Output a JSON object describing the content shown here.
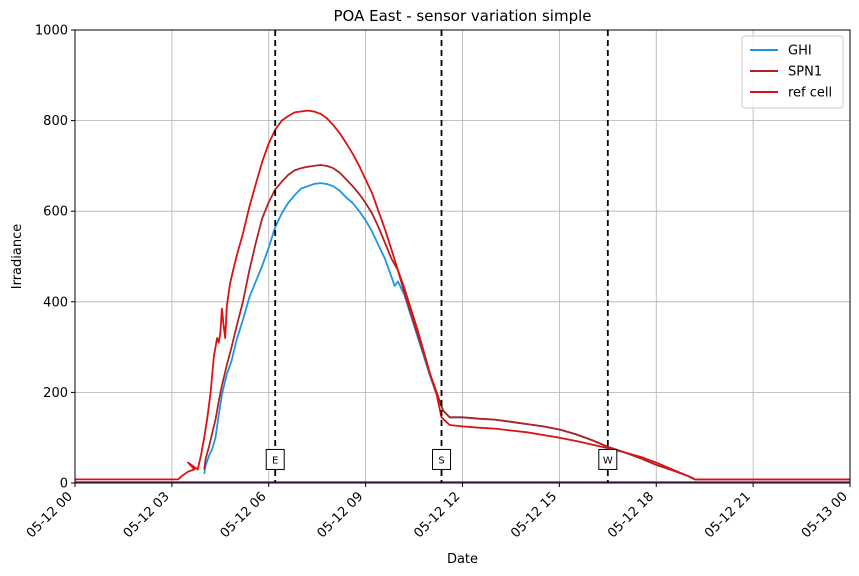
{
  "chart_data": {
    "type": "line",
    "title": "POA East - sensor variation simple",
    "xlabel": "Date",
    "ylabel": "Irradiance",
    "xlim_hours": [
      0,
      24
    ],
    "ylim": [
      0,
      1000
    ],
    "grid": true,
    "legend_position": "top-right",
    "x_ticks": [
      {
        "hour": 0,
        "label": "05-12 00"
      },
      {
        "hour": 3,
        "label": "05-12 03"
      },
      {
        "hour": 6,
        "label": "05-12 06"
      },
      {
        "hour": 9,
        "label": "05-12 09"
      },
      {
        "hour": 12,
        "label": "05-12 12"
      },
      {
        "hour": 15,
        "label": "05-12 15"
      },
      {
        "hour": 18,
        "label": "05-12 18"
      },
      {
        "hour": 21,
        "label": "05-12 21"
      },
      {
        "hour": 24,
        "label": "05-13 00"
      }
    ],
    "y_ticks": [
      0,
      200,
      400,
      600,
      800,
      1000
    ],
    "vertical_markers": [
      {
        "hour": 6.2,
        "label": "E"
      },
      {
        "hour": 11.35,
        "label": "S"
      },
      {
        "hour": 16.5,
        "label": "W"
      }
    ],
    "series": [
      {
        "name": "GHI",
        "color": "#1f95e6",
        "points": [
          [
            4.0,
            20
          ],
          [
            4.05,
            40
          ],
          [
            4.15,
            60
          ],
          [
            4.25,
            75
          ],
          [
            4.35,
            100
          ],
          [
            4.45,
            150
          ],
          [
            4.55,
            195
          ],
          [
            4.7,
            240
          ],
          [
            4.85,
            270
          ],
          [
            5.0,
            315
          ],
          [
            5.2,
            360
          ],
          [
            5.4,
            410
          ],
          [
            5.6,
            445
          ],
          [
            5.8,
            480
          ],
          [
            6.0,
            520
          ],
          [
            6.2,
            565
          ],
          [
            6.4,
            595
          ],
          [
            6.6,
            618
          ],
          [
            6.8,
            635
          ],
          [
            7.0,
            650
          ],
          [
            7.2,
            655
          ],
          [
            7.4,
            660
          ],
          [
            7.6,
            662
          ],
          [
            7.8,
            660
          ],
          [
            8.0,
            655
          ],
          [
            8.2,
            645
          ],
          [
            8.4,
            630
          ],
          [
            8.6,
            618
          ],
          [
            8.8,
            600
          ],
          [
            9.0,
            580
          ],
          [
            9.2,
            555
          ],
          [
            9.4,
            525
          ],
          [
            9.6,
            495
          ],
          [
            9.8,
            455
          ],
          [
            9.9,
            435
          ],
          [
            10.0,
            445
          ],
          [
            10.2,
            415
          ],
          [
            10.4,
            370
          ],
          [
            10.6,
            325
          ],
          [
            10.8,
            280
          ],
          [
            11.0,
            235
          ],
          [
            11.2,
            195
          ],
          [
            11.4,
            160
          ],
          [
            11.6,
            145
          ],
          [
            12.0,
            145
          ],
          [
            12.5,
            142
          ],
          [
            13.0,
            140
          ],
          [
            13.5,
            135
          ],
          [
            14.0,
            130
          ],
          [
            14.5,
            125
          ],
          [
            15.0,
            118
          ],
          [
            15.5,
            108
          ],
          [
            16.0,
            95
          ],
          [
            16.5,
            80
          ],
          [
            17.0,
            68
          ],
          [
            17.5,
            55
          ],
          [
            18.0,
            40
          ],
          [
            18.5,
            28
          ],
          [
            19.0,
            15
          ],
          [
            19.2,
            8
          ],
          [
            24.0,
            8
          ]
        ]
      },
      {
        "name": "SPN1",
        "color": "#b22222",
        "points": [
          [
            4.0,
            30
          ],
          [
            4.05,
            55
          ],
          [
            4.15,
            80
          ],
          [
            4.25,
            110
          ],
          [
            4.35,
            140
          ],
          [
            4.45,
            180
          ],
          [
            4.55,
            215
          ],
          [
            4.7,
            260
          ],
          [
            4.85,
            300
          ],
          [
            5.0,
            345
          ],
          [
            5.2,
            400
          ],
          [
            5.4,
            470
          ],
          [
            5.6,
            530
          ],
          [
            5.8,
            585
          ],
          [
            6.0,
            620
          ],
          [
            6.2,
            648
          ],
          [
            6.4,
            665
          ],
          [
            6.6,
            680
          ],
          [
            6.8,
            690
          ],
          [
            7.0,
            695
          ],
          [
            7.2,
            698
          ],
          [
            7.4,
            700
          ],
          [
            7.6,
            702
          ],
          [
            7.8,
            700
          ],
          [
            8.0,
            695
          ],
          [
            8.2,
            685
          ],
          [
            8.4,
            670
          ],
          [
            8.6,
            655
          ],
          [
            8.8,
            638
          ],
          [
            9.0,
            618
          ],
          [
            9.2,
            595
          ],
          [
            9.4,
            565
          ],
          [
            9.6,
            530
          ],
          [
            9.8,
            495
          ],
          [
            10.0,
            470
          ],
          [
            10.2,
            420
          ],
          [
            10.4,
            375
          ],
          [
            10.6,
            330
          ],
          [
            10.8,
            285
          ],
          [
            11.0,
            240
          ],
          [
            11.2,
            200
          ],
          [
            11.4,
            160
          ],
          [
            11.6,
            145
          ],
          [
            12.0,
            145
          ],
          [
            12.5,
            142
          ],
          [
            13.0,
            140
          ],
          [
            13.5,
            135
          ],
          [
            14.0,
            130
          ],
          [
            14.5,
            125
          ],
          [
            15.0,
            118
          ],
          [
            15.5,
            108
          ],
          [
            16.0,
            95
          ],
          [
            16.5,
            80
          ],
          [
            17.0,
            68
          ],
          [
            17.5,
            55
          ],
          [
            18.0,
            40
          ],
          [
            18.5,
            28
          ],
          [
            19.0,
            15
          ],
          [
            19.2,
            8
          ],
          [
            24.0,
            8
          ]
        ]
      },
      {
        "name": "ref cell",
        "color": "#dd1111",
        "points": [
          [
            0.0,
            8
          ],
          [
            3.2,
            8
          ],
          [
            3.3,
            15
          ],
          [
            3.5,
            25
          ],
          [
            3.7,
            30
          ],
          [
            3.5,
            45
          ],
          [
            3.8,
            30
          ],
          [
            3.9,
            60
          ],
          [
            4.0,
            100
          ],
          [
            4.1,
            145
          ],
          [
            4.2,
            200
          ],
          [
            4.3,
            280
          ],
          [
            4.4,
            320
          ],
          [
            4.45,
            310
          ],
          [
            4.5,
            330
          ],
          [
            4.55,
            385
          ],
          [
            4.6,
            350
          ],
          [
            4.65,
            320
          ],
          [
            4.7,
            390
          ],
          [
            4.8,
            440
          ],
          [
            4.9,
            470
          ],
          [
            5.0,
            500
          ],
          [
            5.2,
            550
          ],
          [
            5.4,
            610
          ],
          [
            5.6,
            660
          ],
          [
            5.8,
            710
          ],
          [
            6.0,
            750
          ],
          [
            6.2,
            780
          ],
          [
            6.4,
            800
          ],
          [
            6.6,
            810
          ],
          [
            6.8,
            818
          ],
          [
            7.0,
            820
          ],
          [
            7.2,
            822
          ],
          [
            7.4,
            820
          ],
          [
            7.6,
            815
          ],
          [
            7.8,
            805
          ],
          [
            8.0,
            790
          ],
          [
            8.2,
            772
          ],
          [
            8.4,
            750
          ],
          [
            8.6,
            727
          ],
          [
            8.8,
            700
          ],
          [
            9.0,
            670
          ],
          [
            9.2,
            640
          ],
          [
            9.4,
            600
          ],
          [
            9.6,
            560
          ],
          [
            9.8,
            515
          ],
          [
            10.0,
            470
          ],
          [
            10.2,
            430
          ],
          [
            10.4,
            385
          ],
          [
            10.6,
            340
          ],
          [
            10.8,
            290
          ],
          [
            11.0,
            240
          ],
          [
            11.2,
            195
          ],
          [
            11.35,
            145
          ],
          [
            11.6,
            128
          ],
          [
            12.0,
            125
          ],
          [
            12.5,
            122
          ],
          [
            13.0,
            120
          ],
          [
            13.5,
            116
          ],
          [
            14.0,
            112
          ],
          [
            14.5,
            106
          ],
          [
            15.0,
            100
          ],
          [
            15.5,
            93
          ],
          [
            16.0,
            85
          ],
          [
            16.5,
            77
          ],
          [
            17.0,
            68
          ],
          [
            17.5,
            58
          ],
          [
            18.0,
            45
          ],
          [
            18.5,
            30
          ],
          [
            19.0,
            15
          ],
          [
            19.2,
            8
          ],
          [
            24.0,
            8
          ]
        ]
      }
    ]
  }
}
